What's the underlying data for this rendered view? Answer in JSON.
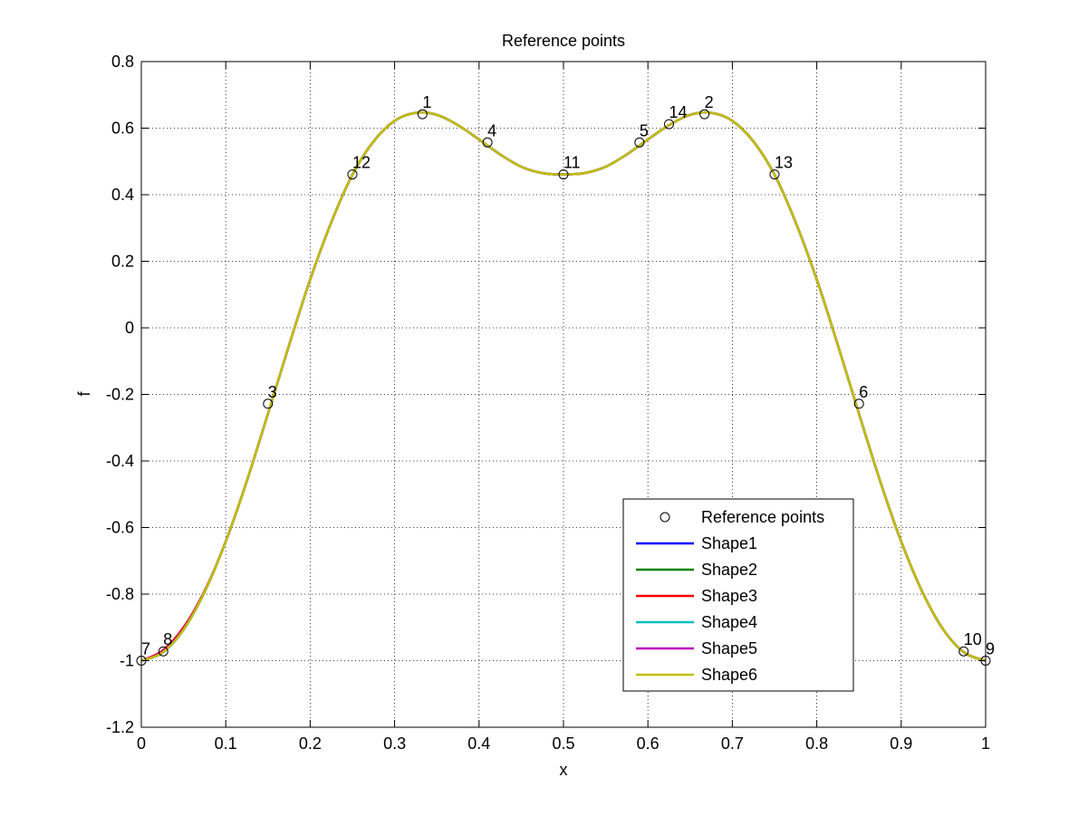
{
  "chart_data": {
    "type": "line",
    "title": "Reference points",
    "xlabel": "x",
    "ylabel": "f",
    "xlim": [
      0,
      1
    ],
    "ylim": [
      -1.2,
      0.8
    ],
    "xticks": [
      0,
      0.1,
      0.2,
      0.3,
      0.4,
      0.5,
      0.6,
      0.7,
      0.8,
      0.9,
      1
    ],
    "xtick_labels": [
      "0",
      "0.1",
      "0.2",
      "0.3",
      "0.4",
      "0.5",
      "0.6",
      "0.7",
      "0.8",
      "0.9",
      "1"
    ],
    "yticks": [
      0.8,
      0.6,
      0.4,
      0.2,
      0,
      -0.2,
      -0.4,
      -0.6,
      -0.8,
      -1,
      -1.2
    ],
    "ytick_labels": [
      "0.8",
      "0.6",
      "0.4",
      "0.2",
      "0",
      "-0.2",
      "-0.4",
      "-0.6",
      "-0.8",
      "-1",
      "-1.2"
    ],
    "grid": true,
    "legend_position": "bottom-right",
    "reference_points": {
      "name": "Reference points",
      "points": [
        {
          "label": "1",
          "x": 0.333,
          "y": 0.642
        },
        {
          "label": "2",
          "x": 0.667,
          "y": 0.642
        },
        {
          "label": "3",
          "x": 0.15,
          "y": -0.228
        },
        {
          "label": "4",
          "x": 0.41,
          "y": 0.557
        },
        {
          "label": "5",
          "x": 0.59,
          "y": 0.557
        },
        {
          "label": "6",
          "x": 0.85,
          "y": -0.228
        },
        {
          "label": "7",
          "x": 0.0,
          "y": -1.0
        },
        {
          "label": "8",
          "x": 0.026,
          "y": -0.972
        },
        {
          "label": "9",
          "x": 1.0,
          "y": -1.0
        },
        {
          "label": "10",
          "x": 0.974,
          "y": -0.972
        },
        {
          "label": "11",
          "x": 0.5,
          "y": 0.461
        },
        {
          "label": "12",
          "x": 0.25,
          "y": 0.461
        },
        {
          "label": "13",
          "x": 0.75,
          "y": 0.461
        },
        {
          "label": "14",
          "x": 0.625,
          "y": 0.612
        }
      ]
    },
    "curve_x": [
      0,
      0.025,
      0.05,
      0.075,
      0.1,
      0.125,
      0.15,
      0.175,
      0.2,
      0.225,
      0.25,
      0.275,
      0.3,
      0.325,
      0.35,
      0.375,
      0.4,
      0.425,
      0.45,
      0.475,
      0.5,
      0.525,
      0.55,
      0.575,
      0.6,
      0.625,
      0.65,
      0.675,
      0.7,
      0.725,
      0.75,
      0.775,
      0.8,
      0.825,
      0.85,
      0.875,
      0.9,
      0.925,
      0.95,
      0.975,
      1
    ],
    "series": [
      {
        "name": "Shape1",
        "color": "#0000ff",
        "values": [
          -1,
          -0.976,
          -0.907,
          -0.793,
          -0.642,
          -0.46,
          -0.258,
          -0.052,
          0.145,
          0.317,
          0.46,
          0.56,
          0.622,
          0.646,
          0.64,
          0.609,
          0.566,
          0.521,
          0.484,
          0.465,
          0.461,
          0.465,
          0.484,
          0.521,
          0.566,
          0.609,
          0.64,
          0.646,
          0.622,
          0.56,
          0.46,
          0.317,
          0.145,
          -0.052,
          -0.258,
          -0.46,
          -0.642,
          -0.793,
          -0.907,
          -0.976,
          -1
        ]
      },
      {
        "name": "Shape2",
        "color": "#008000",
        "values": [
          -1,
          -0.976,
          -0.907,
          -0.793,
          -0.642,
          -0.46,
          -0.258,
          -0.052,
          0.145,
          0.317,
          0.46,
          0.56,
          0.622,
          0.646,
          0.64,
          0.609,
          0.566,
          0.521,
          0.484,
          0.465,
          0.461,
          0.465,
          0.484,
          0.521,
          0.566,
          0.609,
          0.64,
          0.646,
          0.622,
          0.56,
          0.46,
          0.317,
          0.145,
          -0.052,
          -0.258,
          -0.46,
          -0.642,
          -0.793,
          -0.907,
          -0.976,
          -1
        ]
      },
      {
        "name": "Shape3",
        "color": "#ff0000",
        "values": [
          -1,
          -0.97,
          -0.9,
          -0.79,
          -0.642,
          -0.46,
          -0.258,
          -0.052,
          0.145,
          0.317,
          0.46,
          0.56,
          0.622,
          0.646,
          0.64,
          0.609,
          0.566,
          0.521,
          0.484,
          0.465,
          0.461,
          0.465,
          0.484,
          0.521,
          0.566,
          0.609,
          0.64,
          0.646,
          0.622,
          0.56,
          0.46,
          0.317,
          0.145,
          -0.052,
          -0.258,
          -0.46,
          -0.642,
          -0.793,
          -0.907,
          -0.976,
          -1
        ]
      },
      {
        "name": "Shape4",
        "color": "#00bfbf",
        "values": [
          -1,
          -0.976,
          -0.907,
          -0.793,
          -0.642,
          -0.46,
          -0.258,
          -0.052,
          0.145,
          0.317,
          0.46,
          0.56,
          0.622,
          0.646,
          0.64,
          0.609,
          0.566,
          0.521,
          0.484,
          0.465,
          0.461,
          0.465,
          0.484,
          0.521,
          0.566,
          0.609,
          0.64,
          0.646,
          0.622,
          0.56,
          0.46,
          0.317,
          0.145,
          -0.052,
          -0.258,
          -0.46,
          -0.642,
          -0.793,
          -0.907,
          -0.976,
          -1
        ]
      },
      {
        "name": "Shape5",
        "color": "#bf00bf",
        "values": [
          -1,
          -0.973,
          -0.904,
          -0.792,
          -0.642,
          -0.46,
          -0.258,
          -0.052,
          0.145,
          0.317,
          0.46,
          0.56,
          0.622,
          0.646,
          0.64,
          0.609,
          0.566,
          0.521,
          0.484,
          0.465,
          0.461,
          0.465,
          0.484,
          0.521,
          0.566,
          0.609,
          0.64,
          0.646,
          0.622,
          0.56,
          0.46,
          0.317,
          0.145,
          -0.052,
          -0.258,
          -0.46,
          -0.642,
          -0.793,
          -0.907,
          -0.976,
          -1
        ]
      },
      {
        "name": "Shape6",
        "color": "#bfbf00",
        "values": [
          -1,
          -0.976,
          -0.907,
          -0.793,
          -0.642,
          -0.46,
          -0.258,
          -0.052,
          0.145,
          0.317,
          0.46,
          0.56,
          0.622,
          0.646,
          0.64,
          0.609,
          0.566,
          0.521,
          0.484,
          0.465,
          0.461,
          0.465,
          0.484,
          0.521,
          0.566,
          0.609,
          0.64,
          0.646,
          0.622,
          0.56,
          0.46,
          0.317,
          0.145,
          -0.052,
          -0.258,
          -0.46,
          -0.642,
          -0.793,
          -0.907,
          -0.976,
          -1
        ]
      }
    ]
  }
}
